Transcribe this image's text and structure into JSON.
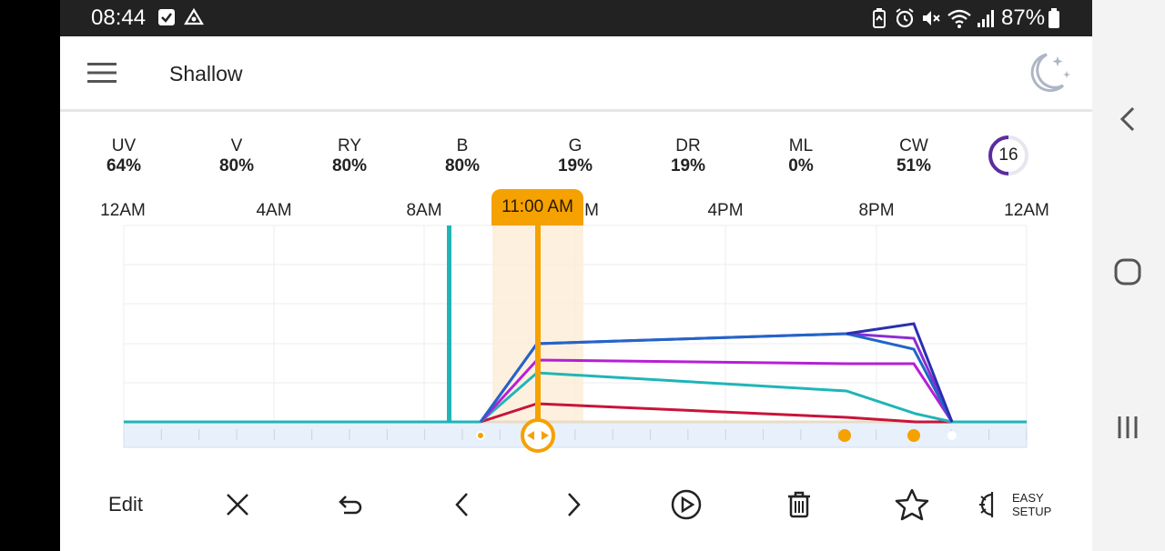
{
  "status_bar": {
    "time": "08:44",
    "battery": "87%"
  },
  "header": {
    "title": "Shallow"
  },
  "channels": [
    {
      "name": "UV",
      "value": "64%"
    },
    {
      "name": "V",
      "value": "80%"
    },
    {
      "name": "RY",
      "value": "80%"
    },
    {
      "name": "B",
      "value": "80%"
    },
    {
      "name": "G",
      "value": "19%"
    },
    {
      "name": "DR",
      "value": "19%"
    },
    {
      "name": "ML",
      "value": "0%"
    },
    {
      "name": "CW",
      "value": "51%"
    }
  ],
  "channel_badge": {
    "value": "16"
  },
  "timeline": {
    "labels": [
      "12AM",
      "4AM",
      "8AM",
      "M",
      "4PM",
      "8PM",
      "12AM"
    ],
    "current_time": "11:00 AM"
  },
  "toolbar": {
    "edit_label": "Edit",
    "easy_setup_line1": "EASY",
    "easy_setup_line2": "SETUP"
  },
  "colors": {
    "accent": "#F5A100",
    "teal": "#1FB5B8",
    "blue": "#2165C8",
    "navy": "#2A2FB0",
    "purple": "#B61FD6",
    "red": "#C8143A"
  },
  "icons": [
    "menu-icon",
    "moon-icon",
    "close-icon",
    "undo-icon",
    "chevron-left-icon",
    "chevron-right-icon",
    "play-icon",
    "trash-icon",
    "star-icon",
    "easy-setup-icon"
  ]
}
